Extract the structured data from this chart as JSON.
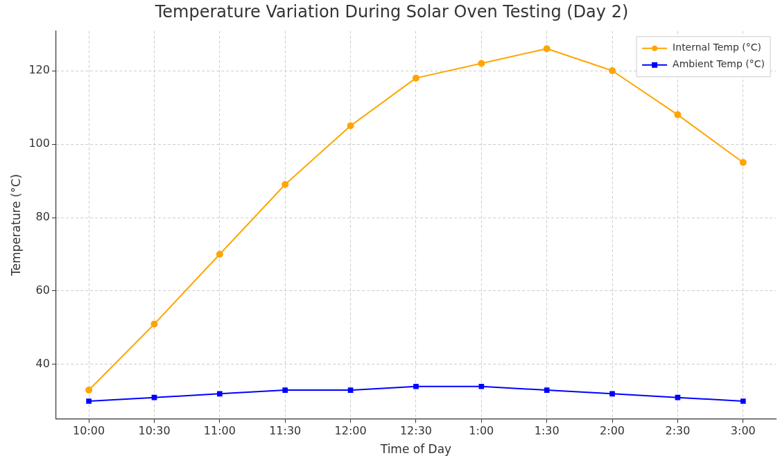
{
  "chart_data": {
    "type": "line",
    "title": "Temperature Variation During Solar Oven Testing (Day 2)",
    "xlabel": "Time of Day",
    "ylabel": "Temperature (°C)",
    "categories": [
      "10:00",
      "10:30",
      "11:00",
      "11:30",
      "12:00",
      "12:30",
      "1:00",
      "1:30",
      "2:00",
      "2:30",
      "3:00"
    ],
    "series": [
      {
        "name": "Internal Temp (°C)",
        "color": "#ffa500",
        "marker": "circle",
        "values": [
          33,
          51,
          70,
          89,
          105,
          118,
          122,
          126,
          120,
          108,
          95
        ]
      },
      {
        "name": "Ambient Temp (°C)",
        "color": "#0000ff",
        "marker": "square",
        "values": [
          30,
          31,
          32,
          33,
          33,
          34,
          34,
          33,
          32,
          31,
          30
        ]
      }
    ],
    "ylim": [
      25.2,
      130.8
    ],
    "yticks": [
      40,
      60,
      80,
      100,
      120
    ],
    "grid": true,
    "legend": "top right",
    "line_style": "solid"
  }
}
